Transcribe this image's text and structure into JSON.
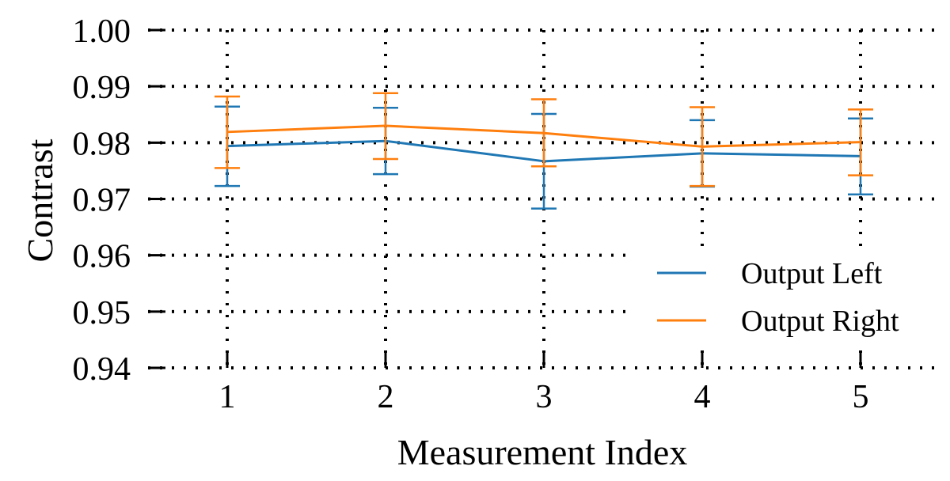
{
  "chart_data": {
    "type": "line",
    "title": "",
    "xlabel": "Measurement Index",
    "ylabel": "Contrast",
    "x": [
      1,
      2,
      3,
      4,
      5
    ],
    "xticks": [
      "1",
      "2",
      "3",
      "4",
      "5"
    ],
    "xlim": [
      0.5,
      5.5
    ],
    "ylim": [
      0.94,
      1.0
    ],
    "yticks": [
      "0.94",
      "0.95",
      "0.96",
      "0.97",
      "0.98",
      "0.99",
      "1.00"
    ],
    "grid": true,
    "grid_style": "dotted",
    "legend_position": "lower-right",
    "error_bars": true,
    "series": [
      {
        "name": "Output Left",
        "color": "#1f77b4",
        "values": [
          0.9794,
          0.9803,
          0.9767,
          0.9781,
          0.9776
        ],
        "err_lower": [
          0.9723,
          0.9744,
          0.9683,
          0.9722,
          0.9708
        ],
        "err_upper": [
          0.9864,
          0.9862,
          0.9851,
          0.984,
          0.9843
        ]
      },
      {
        "name": "Output Right",
        "color": "#ff7f0e",
        "values": [
          0.9819,
          0.983,
          0.9817,
          0.9793,
          0.9801
        ],
        "err_lower": [
          0.9755,
          0.9771,
          0.9758,
          0.9723,
          0.9742
        ],
        "err_upper": [
          0.9882,
          0.9888,
          0.9877,
          0.9863,
          0.9859
        ]
      }
    ]
  }
}
